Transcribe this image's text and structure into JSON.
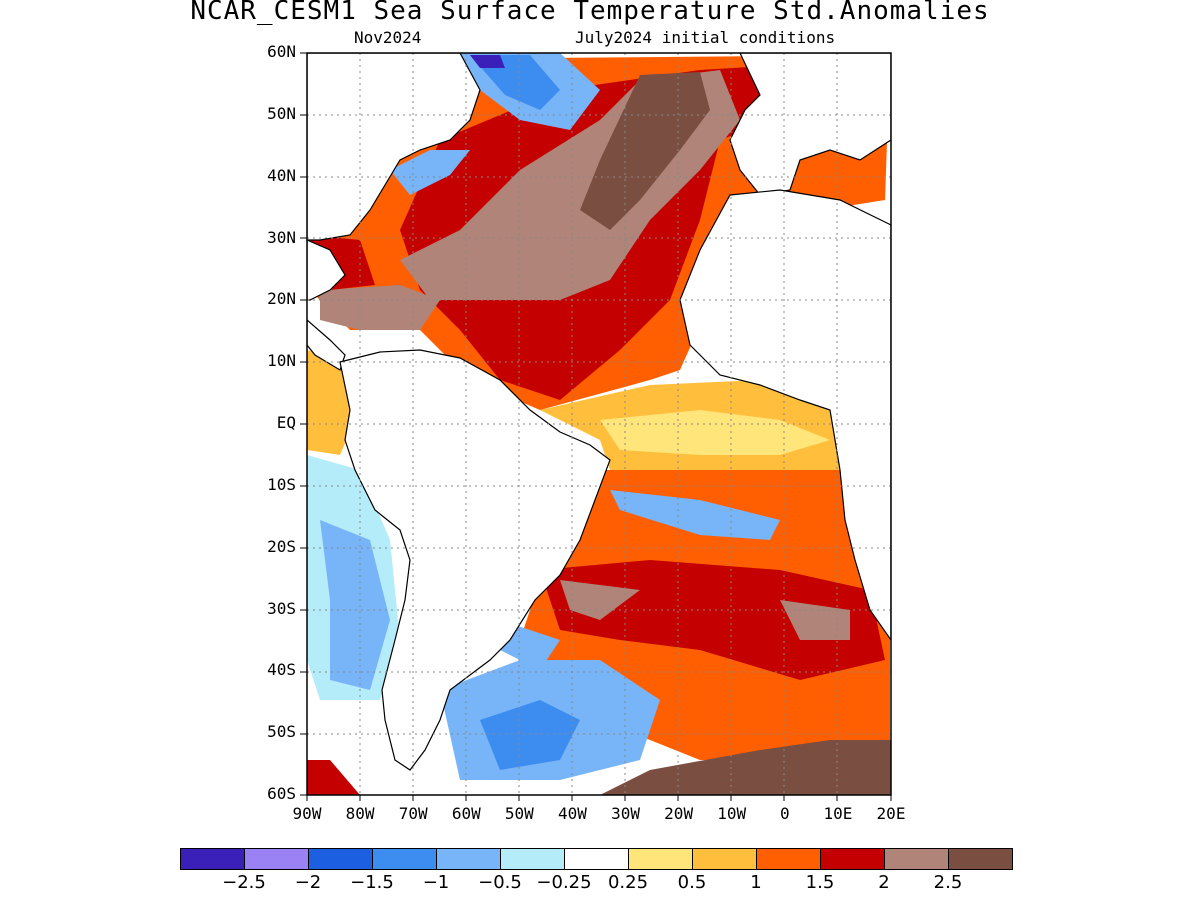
{
  "title": "NCAR_CESM1 Sea Surface Temperature Std.Anomalies",
  "subtitle_left": "Nov2024",
  "subtitle_right": "July2024 initial conditions",
  "map": {
    "lat_labels": [
      "60N",
      "50N",
      "40N",
      "30N",
      "20N",
      "10N",
      "EQ",
      "10S",
      "20S",
      "30S",
      "40S",
      "50S",
      "60S"
    ],
    "lon_labels": [
      "90W",
      "80W",
      "70W",
      "60W",
      "50W",
      "40W",
      "30W",
      "20W",
      "10W",
      "0",
      "10E",
      "20E"
    ],
    "lat_range": [
      -60,
      60
    ],
    "lon_range": [
      -90,
      20
    ],
    "grid": true
  },
  "colorbar": {
    "colors": [
      "#3a1fb8",
      "#9b82f4",
      "#1c5fe0",
      "#3d8cf0",
      "#78b4f8",
      "#b4ecfa",
      "#ffffff",
      "#ffe57a",
      "#ffbf3c",
      "#ff5f00",
      "#c40000",
      "#b08478",
      "#7a4e40"
    ],
    "labels": [
      "−2.5",
      "−2",
      "−1.5",
      "−1",
      "−0.5",
      "−0.25",
      "0.25",
      "0.5",
      "1",
      "1.5",
      "2",
      "2.5"
    ]
  }
}
